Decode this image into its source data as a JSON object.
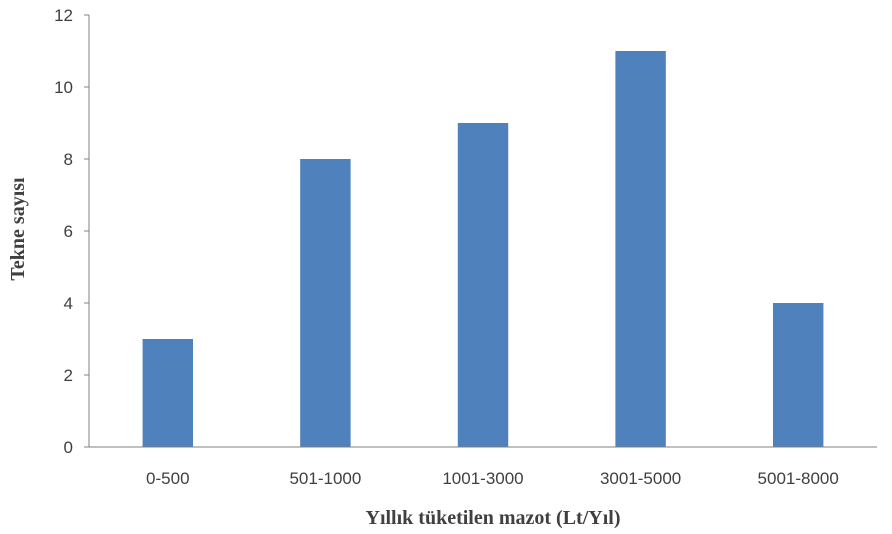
{
  "chart_data": {
    "type": "bar",
    "title": "",
    "xlabel": "Yıllık tüketilen mazot (Lt/Yıl)",
    "ylabel": "Tekne sayısı",
    "categories": [
      "0-500",
      "501-1000",
      "1001-3000",
      "3001-5000",
      "5001-8000"
    ],
    "values": [
      3,
      8,
      9,
      11,
      4
    ],
    "ylim": [
      0,
      12
    ],
    "yticks": [
      0,
      2,
      4,
      6,
      8,
      10,
      12
    ],
    "grid": false,
    "legend": "none",
    "bar_color": "#4f81bd",
    "axis_color": "#808080",
    "text_color": "#404040"
  }
}
